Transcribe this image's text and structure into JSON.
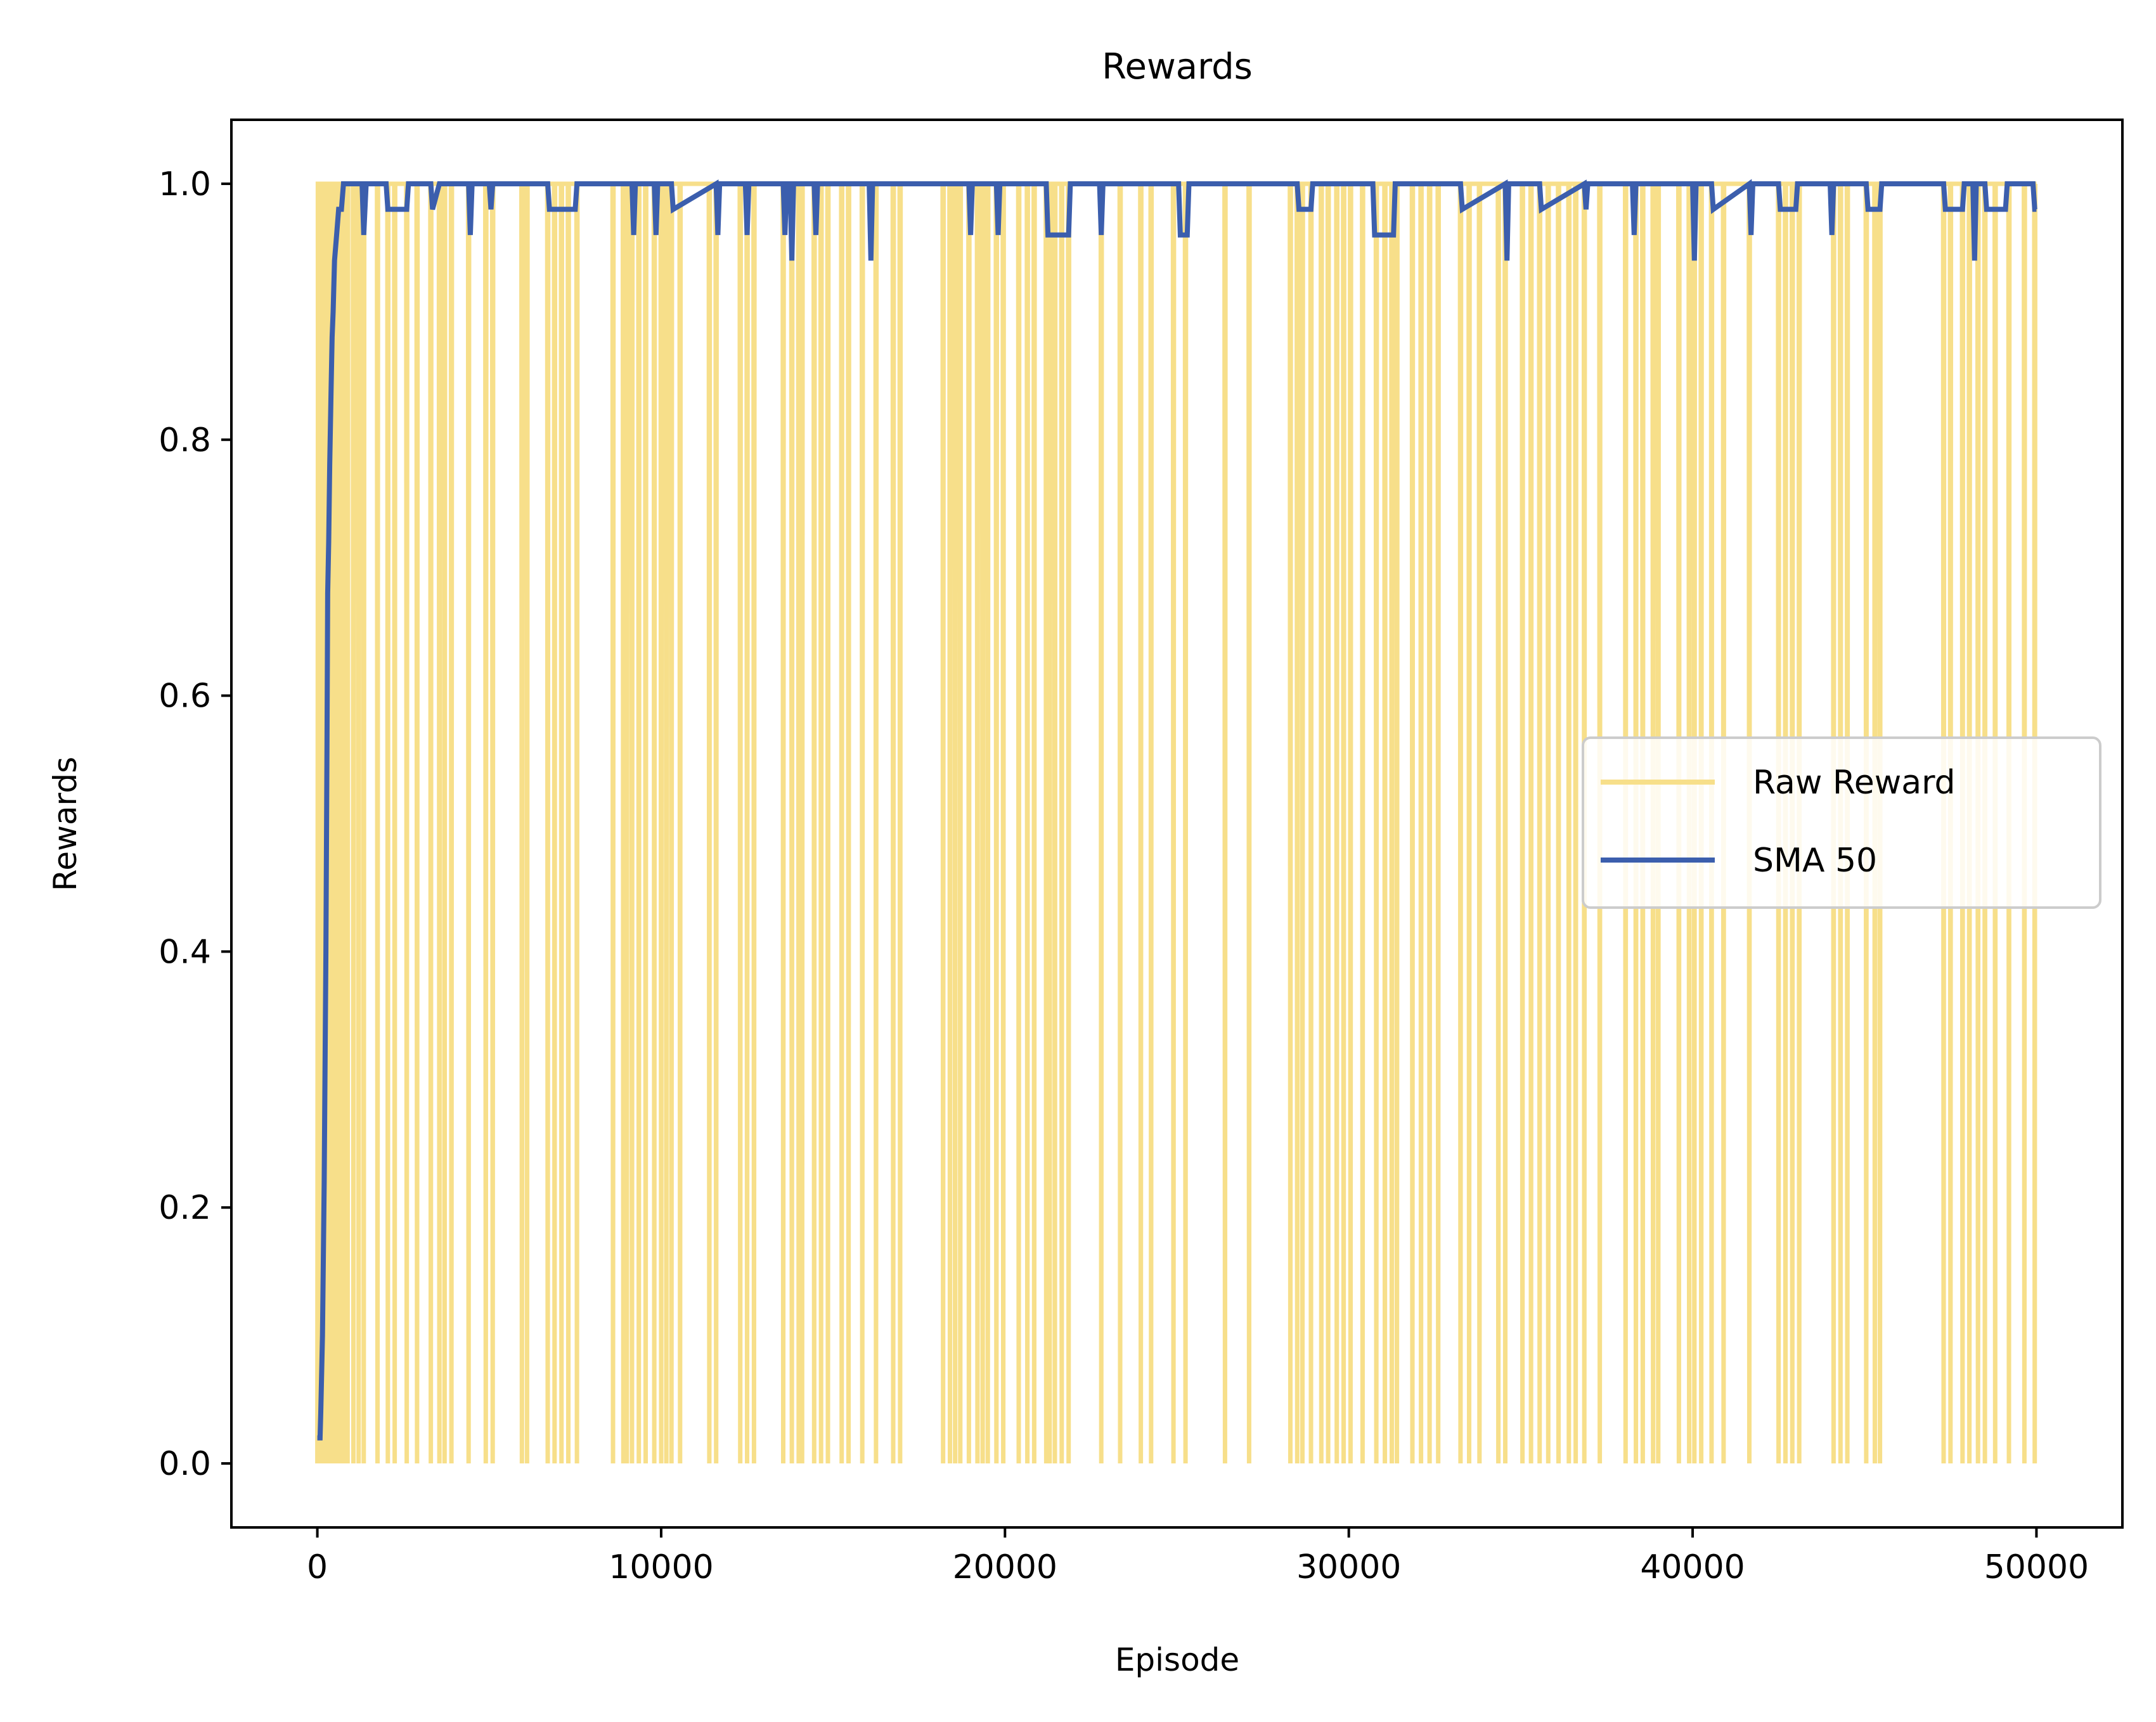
{
  "chart_data": {
    "type": "line",
    "title": "Rewards",
    "xlabel": "Episode",
    "ylabel": "Rewards",
    "xlim": [
      -2500,
      52500
    ],
    "ylim": [
      -0.05,
      1.05
    ],
    "xticks": [
      0,
      10000,
      20000,
      30000,
      40000,
      50000
    ],
    "xtick_labels": [
      "0",
      "10000",
      "20000",
      "30000",
      "40000",
      "50000"
    ],
    "yticks": [
      0.0,
      0.2,
      0.4,
      0.6,
      0.8,
      1.0
    ],
    "ytick_labels": [
      "0.0",
      "0.2",
      "0.4",
      "0.6",
      "0.8",
      "1.0"
    ],
    "grid": false,
    "legend_position": "center-right",
    "series": [
      {
        "name": "Raw Reward",
        "color": "#f7df8a",
        "style": "binary-spikes",
        "baseline": 1,
        "drop_value": 0,
        "x_range": [
          0,
          50000
        ],
        "drop_episodes": [
          30,
          80,
          120,
          180,
          230,
          290,
          350,
          420,
          480,
          560,
          650,
          750,
          880,
          1050,
          1200,
          1350,
          1750,
          2050,
          2250,
          2600,
          2900,
          3300,
          3550,
          3700,
          3900,
          4400,
          4900,
          5100,
          5950,
          6100,
          6700,
          6900,
          7100,
          7300,
          7550,
          8600,
          8900,
          9000,
          9150,
          9350,
          9550,
          9800,
          10000,
          10150,
          10300,
          10550,
          11400,
          11600,
          12300,
          12500,
          12700,
          13550,
          13800,
          14000,
          14100,
          14450,
          14650,
          14850,
          15250,
          15450,
          15850,
          16250,
          16750,
          16950,
          18200,
          18400,
          18550,
          18700,
          18950,
          19200,
          19350,
          19500,
          19750,
          19950,
          20400,
          20650,
          20850,
          21200,
          21300,
          21450,
          21650,
          21850,
          22800,
          23350,
          23950,
          24250,
          24900,
          25250,
          26400,
          27100,
          28300,
          28500,
          28650,
          28900,
          29200,
          29400,
          29650,
          29850,
          30050,
          30400,
          30800,
          31050,
          31250,
          31400,
          31850,
          32100,
          32350,
          32600,
          33250,
          33500,
          33800,
          34350,
          34550,
          35050,
          35300,
          35550,
          35800,
          36100,
          36400,
          36600,
          36850,
          37300,
          38050,
          38350,
          38550,
          38850,
          39000,
          39600,
          39900,
          40050,
          40250,
          40550,
          40900,
          41650,
          42500,
          42700,
          42900,
          43100,
          44100,
          44300,
          44500,
          45050,
          45300,
          45450,
          47300,
          47500,
          47850,
          48050,
          48300,
          48500,
          48800,
          49200,
          49650,
          49950
        ]
      },
      {
        "name": "SMA 50",
        "color": "#3b5ead",
        "points": [
          [
            0,
            0.02
          ],
          [
            80,
            0.02
          ],
          [
            100,
            0.04
          ],
          [
            150,
            0.1
          ],
          [
            200,
            0.22
          ],
          [
            250,
            0.4
          ],
          [
            280,
            0.56
          ],
          [
            300,
            0.68
          ],
          [
            330,
            0.72
          ],
          [
            360,
            0.78
          ],
          [
            400,
            0.84
          ],
          [
            430,
            0.88
          ],
          [
            460,
            0.9
          ],
          [
            500,
            0.94
          ],
          [
            560,
            0.96
          ],
          [
            620,
            0.98
          ],
          [
            700,
            0.98
          ],
          [
            760,
            1.0
          ],
          [
            1300,
            1.0
          ],
          [
            1350,
            0.96
          ],
          [
            1420,
            1.0
          ],
          [
            2000,
            1.0
          ],
          [
            2050,
            0.98
          ],
          [
            2600,
            0.98
          ],
          [
            2650,
            1.0
          ],
          [
            3300,
            1.0
          ],
          [
            3350,
            0.98
          ],
          [
            3550,
            1.0
          ],
          [
            4400,
            1.0
          ],
          [
            4450,
            0.96
          ],
          [
            4500,
            1.0
          ],
          [
            5000,
            1.0
          ],
          [
            5050,
            0.98
          ],
          [
            5100,
            1.0
          ],
          [
            6700,
            1.0
          ],
          [
            6750,
            0.98
          ],
          [
            7500,
            0.98
          ],
          [
            7550,
            1.0
          ],
          [
            9150,
            1.0
          ],
          [
            9200,
            0.96
          ],
          [
            9250,
            1.0
          ],
          [
            9800,
            1.0
          ],
          [
            9850,
            0.96
          ],
          [
            9900,
            1.0
          ],
          [
            10300,
            1.0
          ],
          [
            10350,
            0.98
          ],
          [
            11600,
            1.0
          ],
          [
            11650,
            0.96
          ],
          [
            11700,
            1.0
          ],
          [
            12450,
            1.0
          ],
          [
            12500,
            0.96
          ],
          [
            12550,
            1.0
          ],
          [
            13550,
            1.0
          ],
          [
            13600,
            0.96
          ],
          [
            13650,
            1.0
          ],
          [
            13750,
            1.0
          ],
          [
            13800,
            0.94
          ],
          [
            13850,
            1.0
          ],
          [
            14450,
            1.0
          ],
          [
            14500,
            0.96
          ],
          [
            14550,
            1.0
          ],
          [
            16050,
            1.0
          ],
          [
            16100,
            0.94
          ],
          [
            16150,
            1.0
          ],
          [
            18950,
            1.0
          ],
          [
            19000,
            0.96
          ],
          [
            19050,
            1.0
          ],
          [
            19750,
            1.0
          ],
          [
            19800,
            0.96
          ],
          [
            19850,
            1.0
          ],
          [
            21200,
            1.0
          ],
          [
            21250,
            0.96
          ],
          [
            21850,
            0.96
          ],
          [
            21900,
            1.0
          ],
          [
            22750,
            1.0
          ],
          [
            22800,
            0.96
          ],
          [
            22850,
            1.0
          ],
          [
            25050,
            1.0
          ],
          [
            25100,
            0.96
          ],
          [
            25300,
            0.96
          ],
          [
            25350,
            1.0
          ],
          [
            28500,
            1.0
          ],
          [
            28550,
            0.98
          ],
          [
            28900,
            0.98
          ],
          [
            28950,
            1.0
          ],
          [
            30700,
            1.0
          ],
          [
            30750,
            0.96
          ],
          [
            31300,
            0.96
          ],
          [
            31350,
            1.0
          ],
          [
            33250,
            1.0
          ],
          [
            33300,
            0.98
          ],
          [
            34550,
            1.0
          ],
          [
            34600,
            0.94
          ],
          [
            34650,
            1.0
          ],
          [
            35550,
            1.0
          ],
          [
            35600,
            0.98
          ],
          [
            36850,
            1.0
          ],
          [
            36900,
            0.98
          ],
          [
            36950,
            1.0
          ],
          [
            38250,
            1.0
          ],
          [
            38300,
            0.96
          ],
          [
            38350,
            1.0
          ],
          [
            40000,
            1.0
          ],
          [
            40050,
            0.94
          ],
          [
            40100,
            1.0
          ],
          [
            40550,
            1.0
          ],
          [
            40600,
            0.98
          ],
          [
            41650,
            1.0
          ],
          [
            41700,
            0.96
          ],
          [
            41750,
            1.0
          ],
          [
            42500,
            1.0
          ],
          [
            42550,
            0.98
          ],
          [
            43000,
            0.98
          ],
          [
            43050,
            1.0
          ],
          [
            44000,
            1.0
          ],
          [
            44050,
            0.96
          ],
          [
            44100,
            1.0
          ],
          [
            45050,
            1.0
          ],
          [
            45100,
            0.98
          ],
          [
            45450,
            0.98
          ],
          [
            45500,
            1.0
          ],
          [
            47300,
            1.0
          ],
          [
            47350,
            0.98
          ],
          [
            47850,
            0.98
          ],
          [
            47900,
            1.0
          ],
          [
            48150,
            1.0
          ],
          [
            48200,
            0.94
          ],
          [
            48250,
            1.0
          ],
          [
            48500,
            1.0
          ],
          [
            48550,
            0.98
          ],
          [
            49100,
            0.98
          ],
          [
            49150,
            1.0
          ],
          [
            49900,
            1.0
          ],
          [
            49950,
            0.98
          ],
          [
            50000,
            0.98
          ]
        ]
      }
    ]
  }
}
